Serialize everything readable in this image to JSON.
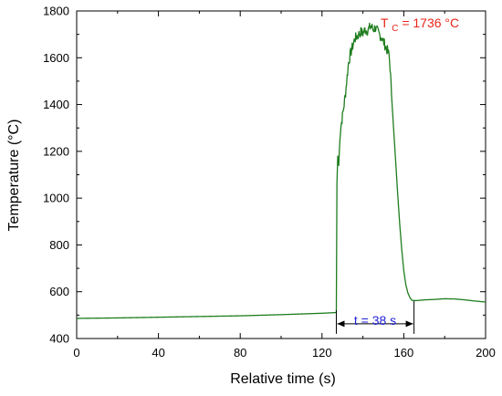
{
  "chart_data": {
    "type": "line",
    "xlabel": "Relative time (s)",
    "ylabel": "Temperature (°C)",
    "xlim": [
      0,
      200
    ],
    "ylim": [
      400,
      1800
    ],
    "xticks": [
      0,
      40,
      80,
      120,
      160,
      200
    ],
    "yticks": [
      400,
      600,
      800,
      1000,
      1200,
      1400,
      1600,
      1800
    ],
    "grid": false,
    "series": [
      {
        "color": "#1e7d1e",
        "points": [
          [
            0,
            486
          ],
          [
            20,
            488
          ],
          [
            40,
            491
          ],
          [
            60,
            494
          ],
          [
            80,
            497
          ],
          [
            100,
            502
          ],
          [
            120,
            508
          ],
          [
            127,
            511
          ],
          [
            127.3,
            1060
          ],
          [
            127.7,
            1180
          ],
          [
            128.2,
            1140
          ],
          [
            128.8,
            1270
          ],
          [
            129.3,
            1310
          ],
          [
            130,
            1350
          ],
          [
            130.8,
            1400
          ],
          [
            131.5,
            1450
          ],
          [
            132.3,
            1520
          ],
          [
            133,
            1580
          ],
          [
            134,
            1620
          ],
          [
            135,
            1650
          ],
          [
            136,
            1680
          ],
          [
            137,
            1690
          ],
          [
            138,
            1700
          ],
          [
            139,
            1710
          ],
          [
            140,
            1705
          ],
          [
            141,
            1720
          ],
          [
            142,
            1715
          ],
          [
            143,
            1725
          ],
          [
            144,
            1736
          ],
          [
            145,
            1720
          ],
          [
            146,
            1728
          ],
          [
            147,
            1715
          ],
          [
            148,
            1700
          ],
          [
            149,
            1690
          ],
          [
            150,
            1670
          ],
          [
            151,
            1650
          ],
          [
            152,
            1630
          ],
          [
            152.8,
            1610
          ],
          [
            153.3,
            1560
          ],
          [
            154,
            1440
          ],
          [
            155,
            1300
          ],
          [
            156,
            1160
          ],
          [
            157,
            1020
          ],
          [
            158,
            890
          ],
          [
            159,
            780
          ],
          [
            160,
            690
          ],
          [
            161,
            630
          ],
          [
            162,
            595
          ],
          [
            163,
            575
          ],
          [
            164,
            563
          ],
          [
            166,
            562
          ],
          [
            170,
            565
          ],
          [
            175,
            567
          ],
          [
            180,
            570
          ],
          [
            185,
            569
          ],
          [
            190,
            565
          ],
          [
            195,
            560
          ],
          [
            200,
            556
          ]
        ]
      }
    ],
    "annotations": {
      "peak": {
        "text_t": "T",
        "text_sub": "C",
        "text_rest": " = 1736 °C",
        "color": "#e8251a"
      },
      "duration": {
        "text": "t = 38 s",
        "color": "#1f1fd6",
        "x_start": 127,
        "x_end": 165,
        "y": 463
      }
    }
  }
}
